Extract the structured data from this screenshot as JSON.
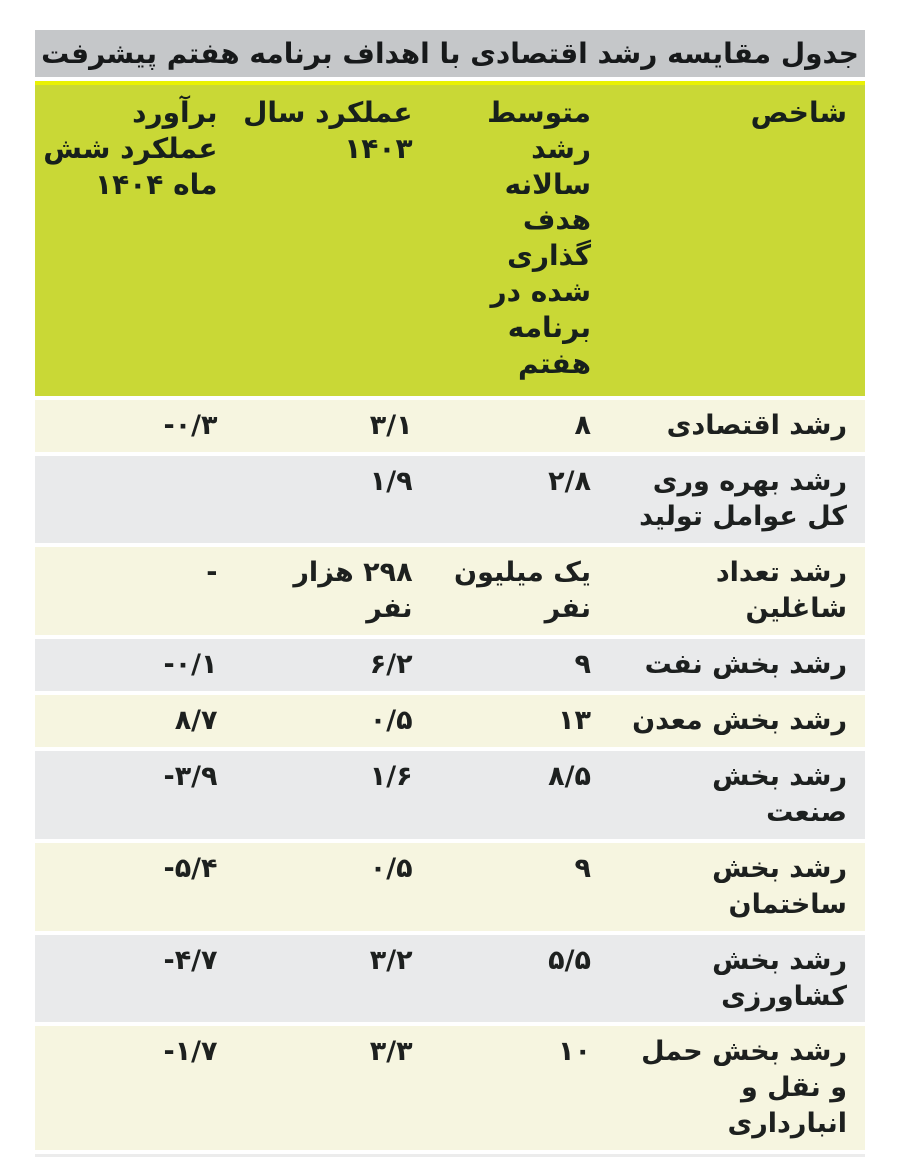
{
  "colors": {
    "title_bar_bg": "#c5c7c9",
    "header_bg": "#c9d836",
    "header_top_edge": "#e9f104",
    "row_cream_bg": "#f6f5e0",
    "row_gray_bg": "#e9eaeb",
    "text": "#1d201f",
    "page_bg": "#ffffff"
  },
  "table": {
    "title": "جدول مقایسه رشد اقتصادی با اهداف برنامه هفتم پیشرفت",
    "columns": {
      "indicator": "شاخص",
      "target": "متوسط رشد سالانه هدف گذاری شده در برنامه هفتم",
      "perf1403": "عملکرد سال ۱۴۰۳",
      "est1404": "برآورد عملکرد شش ماه ۱۴۰۴"
    },
    "rows": [
      {
        "indicator": "رشد اقتصادی",
        "target": "۸",
        "perf1403": "۳/۱",
        "est1404": "-۰/۳"
      },
      {
        "indicator": "رشد بهره وری کل عوامل تولید",
        "target": "۲/۸",
        "perf1403": "۱/۹",
        "est1404": ""
      },
      {
        "indicator": "رشد تعداد شاغلین",
        "target": "یک میلیون نفر",
        "perf1403": "۲۹۸ هزار نفر",
        "est1404": "-"
      },
      {
        "indicator": "رشد بخش نفت",
        "target": "۹",
        "perf1403": "۶/۲",
        "est1404": "-۰/۱"
      },
      {
        "indicator": "رشد بخش معدن",
        "target": "۱۳",
        "perf1403": "۰/۵",
        "est1404": "۸/۷"
      },
      {
        "indicator": "رشد بخش صنعت",
        "target": "۸/۵",
        "perf1403": "۱/۶",
        "est1404": "-۳/۹"
      },
      {
        "indicator": "رشد بخش ساختمان",
        "target": "۹",
        "perf1403": "۰/۵",
        "est1404": "-۵/۴"
      },
      {
        "indicator": "رشد بخش کشاورزی",
        "target": "۵/۵",
        "perf1403": "۳/۲",
        "est1404": "-۴/۷"
      },
      {
        "indicator": "رشد بخش حمل و نقل و انبارداری",
        "target": "۱۰",
        "perf1403": "۳/۳",
        "est1404": "-۱/۷"
      }
    ]
  },
  "chart_data": {
    "type": "table",
    "title": "جدول مقایسه رشد اقتصادی با اهداف برنامه هفتم پیشرفت",
    "columns": [
      "شاخص",
      "متوسط رشد سالانه هدف گذاری شده در برنامه هفتم",
      "عملکرد سال ۱۴۰۳",
      "برآورد عملکرد شش ماه ۱۴۰۴"
    ],
    "rows_numeric": [
      {
        "indicator": "رشد اقتصادی",
        "target": 8,
        "perf_1403": 3.1,
        "est_6mo_1404": -0.3
      },
      {
        "indicator": "رشد بهره وری کل عوامل تولید",
        "target": 2.8,
        "perf_1403": 1.9,
        "est_6mo_1404": null
      },
      {
        "indicator": "رشد تعداد شاغلین",
        "target": "یک میلیون نفر",
        "perf_1403": "۲۹۸ هزار نفر",
        "est_6mo_1404": "-"
      },
      {
        "indicator": "رشد بخش نفت",
        "target": 9,
        "perf_1403": 6.2,
        "est_6mo_1404": -0.1
      },
      {
        "indicator": "رشد بخش معدن",
        "target": 13,
        "perf_1403": 0.5,
        "est_6mo_1404": 8.7
      },
      {
        "indicator": "رشد بخش صنعت",
        "target": 8.5,
        "perf_1403": 1.6,
        "est_6mo_1404": -3.9
      },
      {
        "indicator": "رشد بخش ساختمان",
        "target": 9,
        "perf_1403": 0.5,
        "est_6mo_1404": -5.4
      },
      {
        "indicator": "رشد بخش کشاورزی",
        "target": 5.5,
        "perf_1403": 3.2,
        "est_6mo_1404": -4.7
      },
      {
        "indicator": "رشد بخش حمل و نقل و انبارداری",
        "target": 10,
        "perf_1403": 3.3,
        "est_6mo_1404": -1.7
      }
    ]
  }
}
